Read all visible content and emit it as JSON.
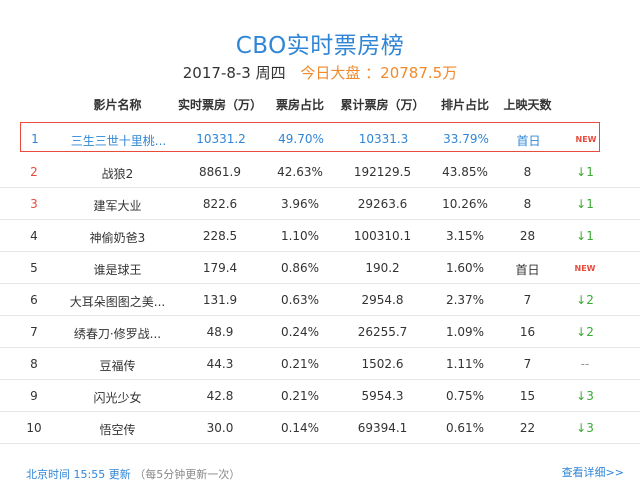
{
  "header": {
    "title": "CBO实时票房榜",
    "date": "2017-8-3 周四",
    "today_label": "今日大盘 ：20787.5万"
  },
  "columns": [
    "影片名称",
    "实时票房（万）",
    "票房占比",
    "累计票房（万）",
    "排片占比",
    "上映天数"
  ],
  "rows": [
    {
      "rank": "1",
      "name": "三生三世十里桃...",
      "rt": "10331.2",
      "rs": "49.70%",
      "tot": "10331.3",
      "ps": "33.79%",
      "days": "首日",
      "chg": "NEW"
    },
    {
      "rank": "2",
      "name": "战狼2",
      "rt": "8861.9",
      "rs": "42.63%",
      "tot": "192129.5",
      "ps": "43.85%",
      "days": "8",
      "chg": "↓1"
    },
    {
      "rank": "3",
      "name": "建军大业",
      "rt": "822.6",
      "rs": "3.96%",
      "tot": "29263.6",
      "ps": "10.26%",
      "days": "8",
      "chg": "↓1"
    },
    {
      "rank": "4",
      "name": "神偷奶爸3",
      "rt": "228.5",
      "rs": "1.10%",
      "tot": "100310.1",
      "ps": "3.15%",
      "days": "28",
      "chg": "↓1"
    },
    {
      "rank": "5",
      "name": "谁是球王",
      "rt": "179.4",
      "rs": "0.86%",
      "tot": "190.2",
      "ps": "1.60%",
      "days": "首日",
      "chg": "NEW"
    },
    {
      "rank": "6",
      "name": "大耳朵图图之美...",
      "rt": "131.9",
      "rs": "0.63%",
      "tot": "2954.8",
      "ps": "2.37%",
      "days": "7",
      "chg": "↓2"
    },
    {
      "rank": "7",
      "name": "绣春刀·修罗战...",
      "rt": "48.9",
      "rs": "0.24%",
      "tot": "26255.7",
      "ps": "1.09%",
      "days": "16",
      "chg": "↓2"
    },
    {
      "rank": "8",
      "name": "豆福传",
      "rt": "44.3",
      "rs": "0.21%",
      "tot": "1502.6",
      "ps": "1.11%",
      "days": "7",
      "chg": "--"
    },
    {
      "rank": "9",
      "name": "闪光少女",
      "rt": "42.8",
      "rs": "0.21%",
      "tot": "5954.3",
      "ps": "0.75%",
      "days": "15",
      "chg": "↓3"
    },
    {
      "rank": "10",
      "name": "悟空传",
      "rt": "30.0",
      "rs": "0.14%",
      "tot": "69394.1",
      "ps": "0.61%",
      "days": "22",
      "chg": "↓3"
    }
  ],
  "footer": {
    "update_time": "北京时间 15:55 更新",
    "update_note": "（每5分钟更新一次）",
    "details_link": "查看详细>>"
  },
  "colors": {
    "accent": "#2f86d6",
    "orange": "#f08a2c",
    "red": "#e84b3c",
    "green": "#3aaa35"
  }
}
